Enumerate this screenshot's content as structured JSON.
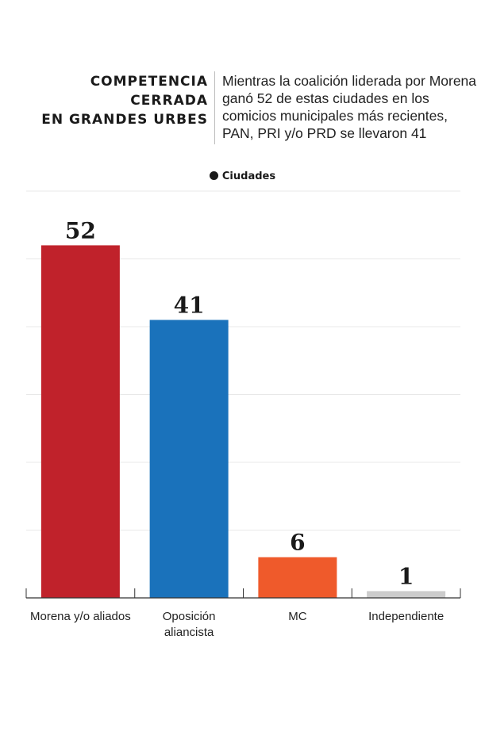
{
  "header": {
    "title": "COMPETENCIA\nCERRADA\nEN GRANDES URBES",
    "subtitle": "Mientras la coalición liderada por Morena ganó 52 de estas ciudades en los comicios municipales más recientes, PAN, PRI y/o PRD se llevaron 41"
  },
  "legend": {
    "label": "Ciudades"
  },
  "chart_data": {
    "type": "bar",
    "categories": [
      "Morena y/o aliados",
      "Oposición aliancista",
      "MC",
      "Independiente"
    ],
    "values": [
      52,
      41,
      6,
      1
    ],
    "value_labels": [
      "52",
      "41",
      "6",
      "1"
    ],
    "colors": [
      "#c0222b",
      "#1a72bb",
      "#ef5a2b",
      "#cccccc"
    ],
    "series": [
      {
        "name": "Ciudades",
        "values": [
          52,
          41,
          6,
          1
        ]
      }
    ],
    "ylim": [
      0,
      60
    ],
    "grid": true,
    "legend_position": "top-center"
  }
}
